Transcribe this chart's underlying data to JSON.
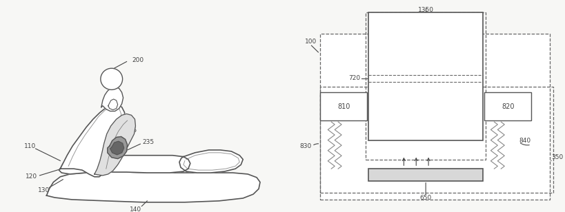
{
  "bg_color": "#f7f7f5",
  "line_color": "#555555",
  "dashed_color": "#666666",
  "label_color": "#444444",
  "figsize": [
    8.2,
    3.08
  ],
  "dpi": 100
}
